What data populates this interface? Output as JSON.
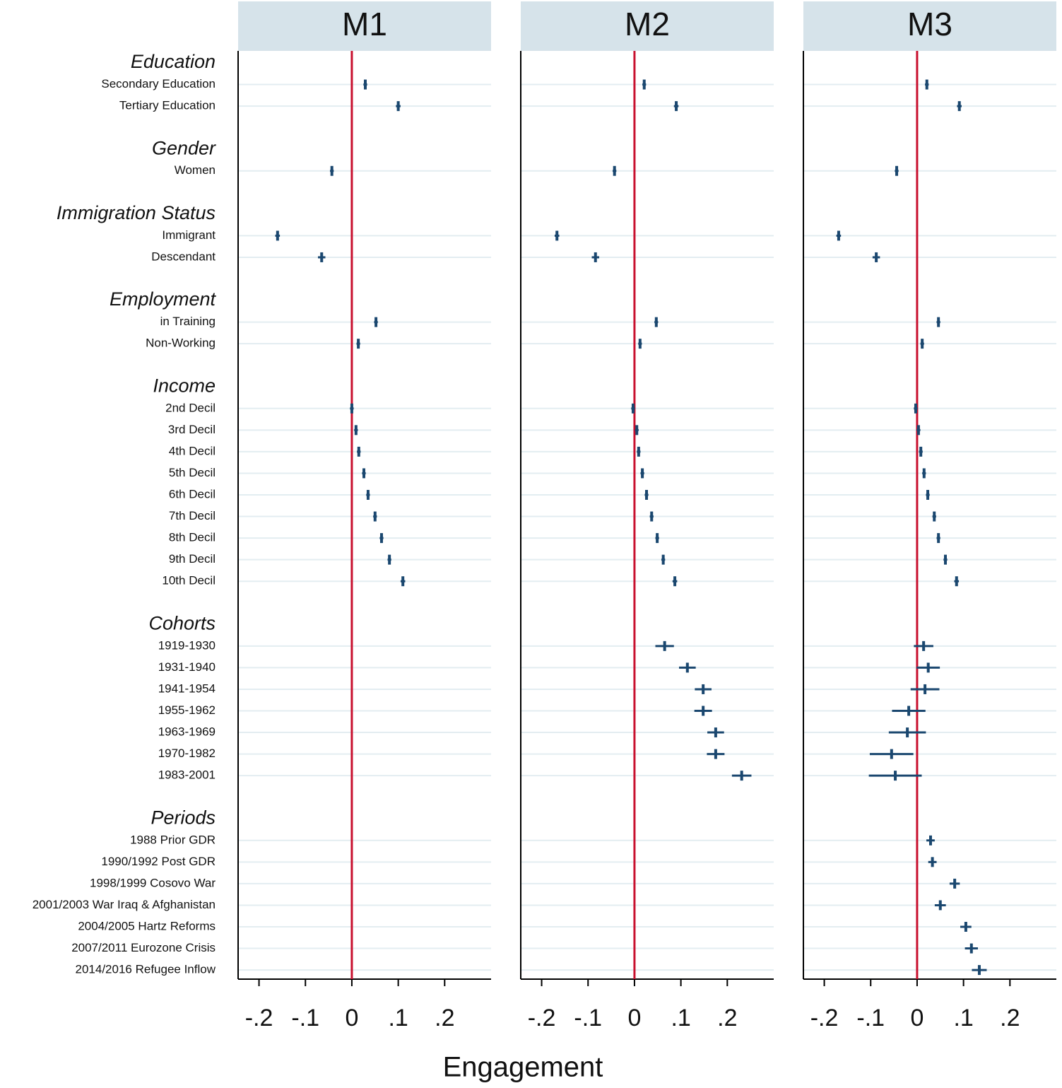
{
  "chart_data": {
    "type": "coefplot",
    "xlabel": "Engagement",
    "xlim": [
      -0.245,
      0.3
    ],
    "xticks": [
      {
        "value": -0.2,
        "label": "-.2"
      },
      {
        "value": -0.1,
        "label": "-.1"
      },
      0,
      {
        "value": 0.1,
        "label": ".1"
      },
      {
        "value": 0.2,
        "label": ".2"
      }
    ],
    "reference_line": 0,
    "reference_color": "#c8102e",
    "color": "#1a476f",
    "groups": [
      {
        "name": "Education",
        "items": [
          "Secondary Education",
          "Tertiary Education"
        ]
      },
      {
        "name": "Gender",
        "items": [
          "Women"
        ]
      },
      {
        "name": "Immigration Status",
        "items": [
          "Immigrant",
          "Descendant"
        ]
      },
      {
        "name": "Employment",
        "items": [
          "in Training",
          "Non-Working"
        ]
      },
      {
        "name": "Income",
        "items": [
          "2nd Decil",
          "3rd Decil",
          "4th Decil",
          "5th Decil",
          "6th Decil",
          "7th Decil",
          "8th Decil",
          "9th Decil",
          "10th Decil"
        ]
      },
      {
        "name": "Cohorts",
        "items": [
          "1919-1930",
          "1931-1940",
          "1941-1954",
          "1955-1962",
          "1963-1969",
          "1970-1982",
          "1983-2001"
        ]
      },
      {
        "name": "Periods",
        "items": [
          "1988 Prior GDR",
          "1990/1992 Post GDR",
          "1998/1999 Cosovo War",
          "2001/2003 War Iraq & Afghanistan",
          "2004/2005 Hartz Reforms",
          "2007/2011 Eurozone Crisis",
          "2014/2016 Refugee Inflow"
        ]
      }
    ],
    "series": [
      {
        "name": "M1",
        "values": [
          0.029,
          0.1,
          -0.043,
          -0.16,
          -0.065,
          0.052,
          0.014,
          0.0,
          0.009,
          0.015,
          0.026,
          0.035,
          0.05,
          0.064,
          0.081,
          0.11,
          null,
          null,
          null,
          null,
          null,
          null,
          null,
          null,
          null,
          null,
          null,
          null,
          null,
          null
        ],
        "errors": [
          0.004,
          0.005,
          0.004,
          0.005,
          0.008,
          0.004,
          0.004,
          0.004,
          0.004,
          0.004,
          0.004,
          0.004,
          0.004,
          0.004,
          0.004,
          0.005,
          null,
          null,
          null,
          null,
          null,
          null,
          null,
          null,
          null,
          null,
          null,
          null,
          null,
          null
        ]
      },
      {
        "name": "M2",
        "values": [
          0.021,
          0.09,
          -0.043,
          -0.167,
          -0.084,
          0.047,
          0.012,
          -0.003,
          0.005,
          0.009,
          0.017,
          0.026,
          0.037,
          0.049,
          0.062,
          0.087,
          0.065,
          0.114,
          0.148,
          0.148,
          0.175,
          0.175,
          0.231,
          null,
          null,
          null,
          null,
          null,
          null,
          null
        ],
        "errors": [
          0.004,
          0.005,
          0.004,
          0.005,
          0.008,
          0.004,
          0.004,
          0.004,
          0.004,
          0.004,
          0.004,
          0.004,
          0.004,
          0.004,
          0.004,
          0.005,
          0.02,
          0.018,
          0.018,
          0.019,
          0.018,
          0.019,
          0.021,
          null,
          null,
          null,
          null,
          null,
          null,
          null
        ]
      },
      {
        "name": "M3",
        "values": [
          0.021,
          0.091,
          -0.044,
          -0.169,
          -0.088,
          0.046,
          0.011,
          -0.003,
          0.003,
          0.008,
          0.015,
          0.023,
          0.037,
          0.046,
          0.061,
          0.085,
          0.014,
          0.024,
          0.017,
          -0.018,
          -0.021,
          -0.055,
          -0.047,
          0.029,
          0.033,
          0.081,
          0.05,
          0.105,
          0.117,
          0.134
        ],
        "errors": [
          0.004,
          0.005,
          0.004,
          0.005,
          0.008,
          0.004,
          0.004,
          0.004,
          0.004,
          0.004,
          0.004,
          0.004,
          0.004,
          0.004,
          0.004,
          0.005,
          0.021,
          0.025,
          0.031,
          0.036,
          0.04,
          0.047,
          0.057,
          0.009,
          0.009,
          0.011,
          0.012,
          0.012,
          0.014,
          0.016
        ]
      }
    ]
  }
}
